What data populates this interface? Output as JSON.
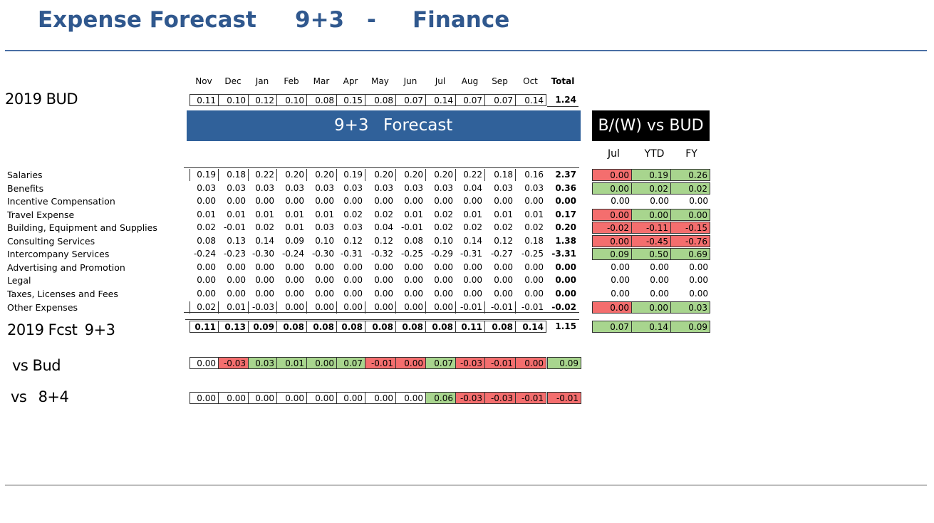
{
  "title": {
    "part1": "Expense Forecast",
    "part2": "9+3",
    "part3": "-",
    "part4": "Finance"
  },
  "months": [
    "Nov",
    "Dec",
    "Jan",
    "Feb",
    "Mar",
    "Apr",
    "May",
    "Jun",
    "Jul",
    "Aug",
    "Sep",
    "Oct"
  ],
  "total_label": "Total",
  "bud": {
    "label": "2019 BUD",
    "values": [
      "0.11",
      "0.10",
      "0.12",
      "0.10",
      "0.08",
      "0.15",
      "0.08",
      "0.07",
      "0.14",
      "0.07",
      "0.07",
      "0.14"
    ],
    "total": "1.24"
  },
  "banner": {
    "prefix": "9+3",
    "label": "Forecast"
  },
  "bw": {
    "title": "B/(W) vs BUD",
    "cols": [
      "Jul",
      "YTD",
      "FY"
    ]
  },
  "rows": [
    {
      "label": "Salaries",
      "values": [
        "0.19",
        "0.18",
        "0.22",
        "0.20",
        "0.20",
        "0.19",
        "0.20",
        "0.20",
        "0.20",
        "0.22",
        "0.18",
        "0.16"
      ],
      "total": "2.37",
      "bw": [
        "0.00",
        "0.19",
        "0.26"
      ],
      "bw_status": [
        "red",
        "green",
        "green"
      ]
    },
    {
      "label": "Benefits",
      "values": [
        "0.03",
        "0.03",
        "0.03",
        "0.03",
        "0.03",
        "0.03",
        "0.03",
        "0.03",
        "0.03",
        "0.04",
        "0.03",
        "0.03"
      ],
      "total": "0.36",
      "bw": [
        "0.00",
        "0.02",
        "0.02"
      ],
      "bw_status": [
        "green",
        "green",
        "green"
      ]
    },
    {
      "label": "Incentive Compensation",
      "values": [
        "0.00",
        "0.00",
        "0.00",
        "0.00",
        "0.00",
        "0.00",
        "0.00",
        "0.00",
        "0.00",
        "0.00",
        "0.00",
        "0.00"
      ],
      "total": "0.00",
      "bw": [
        "0.00",
        "0.00",
        "0.00"
      ],
      "bw_status": [
        "none",
        "none",
        "none"
      ]
    },
    {
      "label": "Travel Expense",
      "values": [
        "0.01",
        "0.01",
        "0.01",
        "0.01",
        "0.01",
        "0.02",
        "0.02",
        "0.01",
        "0.02",
        "0.01",
        "0.01",
        "0.01"
      ],
      "total": "0.17",
      "bw": [
        "0.00",
        "0.00",
        "0.00"
      ],
      "bw_status": [
        "red",
        "green",
        "green"
      ]
    },
    {
      "label": "Building, Equipment and Supplies",
      "values": [
        "0.02",
        "-0.01",
        "0.02",
        "0.01",
        "0.03",
        "0.03",
        "0.04",
        "-0.01",
        "0.02",
        "0.02",
        "0.02",
        "0.02"
      ],
      "total": "0.20",
      "bw": [
        "-0.02",
        "-0.11",
        "-0.15"
      ],
      "bw_status": [
        "red",
        "red",
        "red"
      ]
    },
    {
      "label": "Consulting Services",
      "values": [
        "0.08",
        "0.13",
        "0.14",
        "0.09",
        "0.10",
        "0.12",
        "0.12",
        "0.08",
        "0.10",
        "0.14",
        "0.12",
        "0.18"
      ],
      "total": "1.38",
      "bw": [
        "0.00",
        "-0.45",
        "-0.76"
      ],
      "bw_status": [
        "red",
        "red",
        "red"
      ]
    },
    {
      "label": "Intercompany Services",
      "values": [
        "-0.24",
        "-0.23",
        "-0.30",
        "-0.24",
        "-0.30",
        "-0.31",
        "-0.32",
        "-0.25",
        "-0.29",
        "-0.31",
        "-0.27",
        "-0.25"
      ],
      "total": "-3.31",
      "bw": [
        "0.09",
        "0.50",
        "0.69"
      ],
      "bw_status": [
        "green",
        "green",
        "green"
      ]
    },
    {
      "label": "Advertising and Promotion",
      "values": [
        "0.00",
        "0.00",
        "0.00",
        "0.00",
        "0.00",
        "0.00",
        "0.00",
        "0.00",
        "0.00",
        "0.00",
        "0.00",
        "0.00"
      ],
      "total": "0.00",
      "bw": [
        "0.00",
        "0.00",
        "0.00"
      ],
      "bw_status": [
        "none",
        "none",
        "none"
      ]
    },
    {
      "label": "Legal",
      "values": [
        "0.00",
        "0.00",
        "0.00",
        "0.00",
        "0.00",
        "0.00",
        "0.00",
        "0.00",
        "0.00",
        "0.00",
        "0.00",
        "0.00"
      ],
      "total": "0.00",
      "bw": [
        "0.00",
        "0.00",
        "0.00"
      ],
      "bw_status": [
        "none",
        "none",
        "none"
      ]
    },
    {
      "label": "Taxes, Licenses and Fees",
      "values": [
        "0.00",
        "0.00",
        "0.00",
        "0.00",
        "0.00",
        "0.00",
        "0.00",
        "0.00",
        "0.00",
        "0.00",
        "0.00",
        "0.00"
      ],
      "total": "0.00",
      "bw": [
        "0.00",
        "0.00",
        "0.00"
      ],
      "bw_status": [
        "none",
        "none",
        "none"
      ]
    },
    {
      "label": "Other Expenses",
      "values": [
        "0.02",
        "0.01",
        "-0.03",
        "0.00",
        "0.00",
        "0.00",
        "0.00",
        "0.00",
        "0.00",
        "-0.01",
        "-0.01",
        "-0.01"
      ],
      "total": "-0.02",
      "bw": [
        "0.00",
        "0.00",
        "0.03"
      ],
      "bw_status": [
        "red",
        "green",
        "green"
      ]
    }
  ],
  "fcst": {
    "label_a": "2019 Fcst",
    "label_b": "9+3",
    "values": [
      "0.11",
      "0.13",
      "0.09",
      "0.08",
      "0.08",
      "0.08",
      "0.08",
      "0.08",
      "0.08",
      "0.11",
      "0.08",
      "0.14"
    ],
    "total": "1.15",
    "bw": [
      "0.07",
      "0.14",
      "0.09"
    ],
    "bw_status": [
      "green",
      "green",
      "green"
    ]
  },
  "vs_bud": {
    "label": "vs Bud",
    "values": [
      "0.00",
      "-0.03",
      "0.03",
      "0.01",
      "0.00",
      "0.07",
      "-0.01",
      "0.00",
      "0.07",
      "-0.03",
      "-0.01",
      "0.00"
    ],
    "status": [
      "none",
      "red",
      "green",
      "green",
      "green",
      "green",
      "red",
      "red",
      "green",
      "red",
      "red",
      "red"
    ],
    "total": "0.09",
    "total_status": "green"
  },
  "vs_84": {
    "label_a": "vs",
    "label_b": "8+4",
    "values": [
      "0.00",
      "0.00",
      "0.00",
      "0.00",
      "0.00",
      "0.00",
      "0.00",
      "0.00",
      "0.06",
      "-0.03",
      "-0.03",
      "-0.01"
    ],
    "status": [
      "none",
      "none",
      "none",
      "none",
      "none",
      "none",
      "none",
      "none",
      "green",
      "red",
      "red",
      "red"
    ],
    "total": "-0.01",
    "total_status": "red"
  }
}
